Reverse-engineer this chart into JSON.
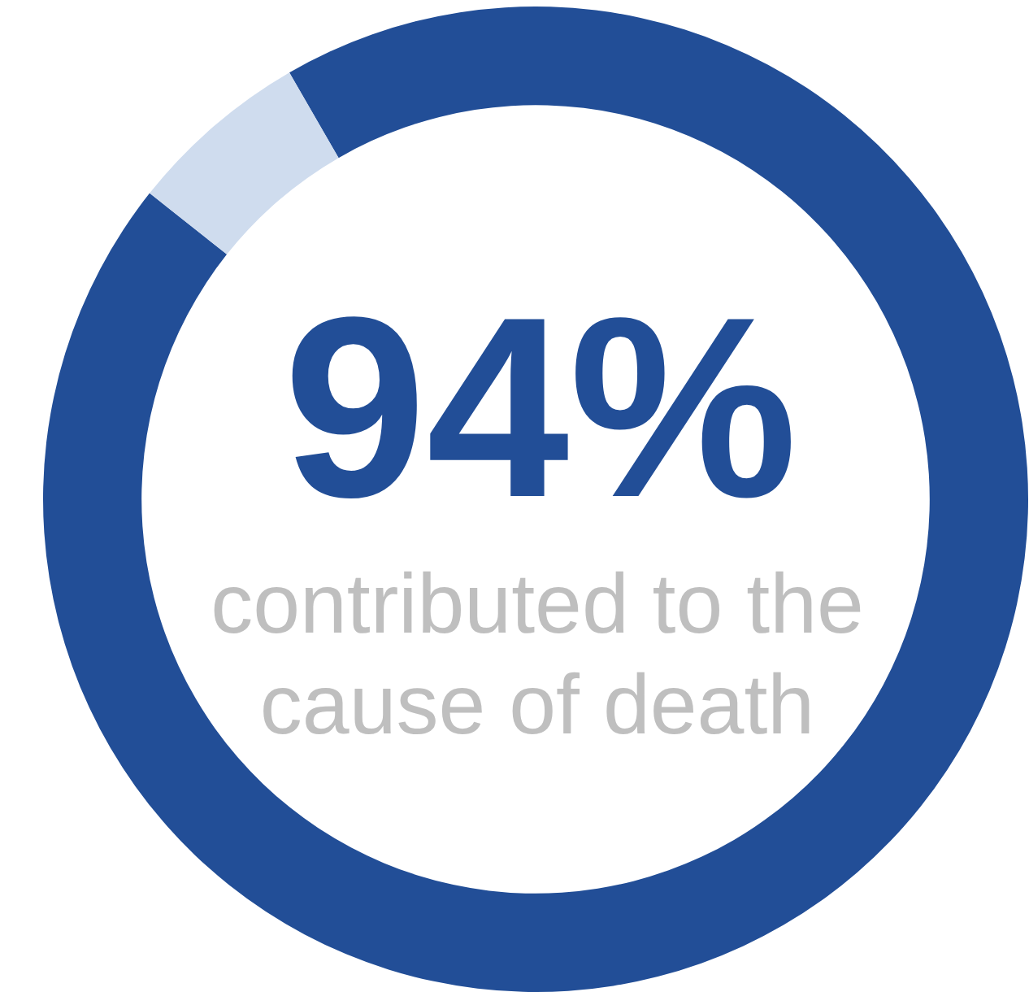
{
  "chart_data": {
    "type": "donut",
    "categories": [
      null,
      null
    ],
    "values": [
      94,
      6
    ],
    "colors": [
      "#224e97",
      "#cfdcee"
    ],
    "annotations": [
      "94%",
      "contributed to the cause of death"
    ]
  }
}
